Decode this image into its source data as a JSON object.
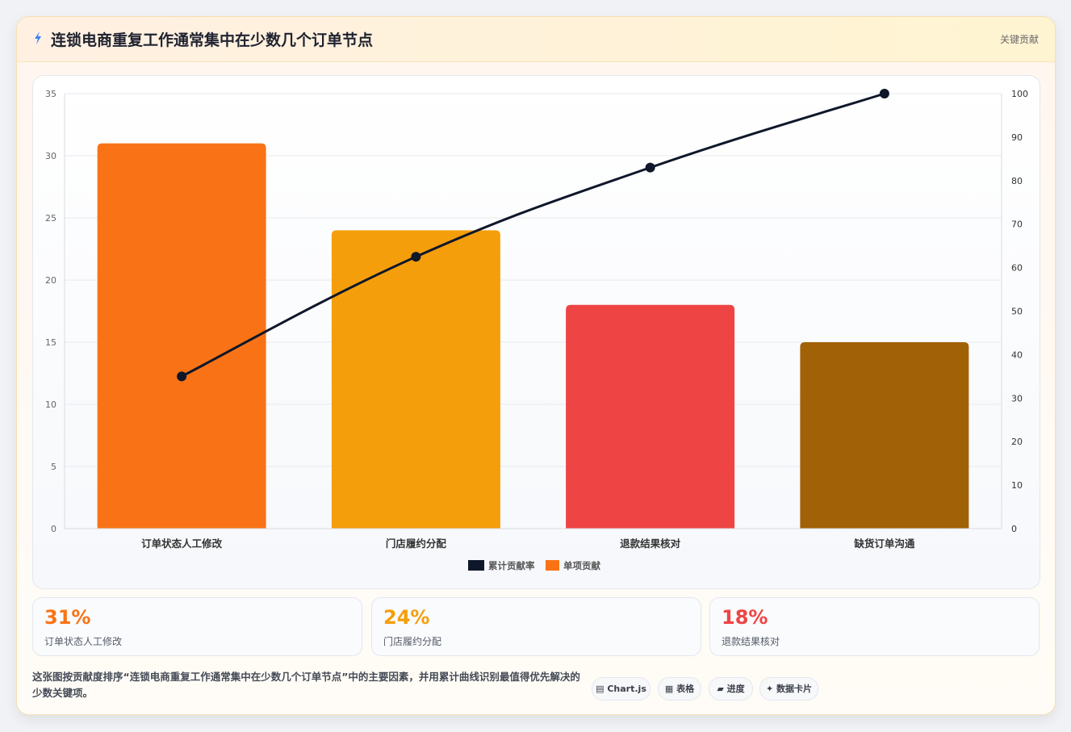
{
  "header": {
    "icon": "lightning-icon",
    "title": "连锁电商重复工作通常集中在少数几个订单节点",
    "tag": "关键贡献"
  },
  "chart_data": {
    "type": "bar",
    "categories": [
      "订单状态人工修改",
      "门店履约分配",
      "退款结果核对",
      "缺货订单沟通"
    ],
    "series": [
      {
        "name": "累计贡献率",
        "type": "line",
        "axis": "right",
        "color": "#0f172a",
        "values": [
          35,
          62.5,
          83,
          100
        ]
      },
      {
        "name": "单项贡献",
        "type": "bar",
        "axis": "left",
        "colors": [
          "#f97316",
          "#f59e0b",
          "#ef4444",
          "#a16207"
        ],
        "values": [
          31,
          24,
          18,
          15
        ]
      }
    ],
    "y_left": {
      "min": 0,
      "max": 35,
      "ticks": [
        0,
        5,
        10,
        15,
        20,
        25,
        30,
        35
      ]
    },
    "y_right": {
      "min": 0,
      "max": 100,
      "ticks": [
        0,
        10,
        20,
        30,
        40,
        50,
        60,
        70,
        80,
        90,
        100
      ]
    },
    "legend_position": "bottom",
    "grid": true
  },
  "stats": [
    {
      "value": "31%",
      "label": "订单状态人工修改",
      "color": "#f97316"
    },
    {
      "value": "24%",
      "label": "门店履约分配",
      "color": "#f59e0b"
    },
    {
      "value": "18%",
      "label": "退款结果核对",
      "color": "#ef4444"
    }
  ],
  "footnote": "这张图按贡献度排序“连锁电商重复工作通常集中在少数几个订单节点”中的主要因素，并用累计曲线识别最值得优先解决的少数关键项。",
  "pills": [
    {
      "icon": "chart-icon",
      "glyph": "▤",
      "label": "Chart.js"
    },
    {
      "icon": "table-icon",
      "glyph": "▦",
      "label": "表格"
    },
    {
      "icon": "progress-icon",
      "glyph": "▰",
      "label": "进度"
    },
    {
      "icon": "sparkle-icon",
      "glyph": "✦",
      "label": "数据卡片"
    }
  ]
}
